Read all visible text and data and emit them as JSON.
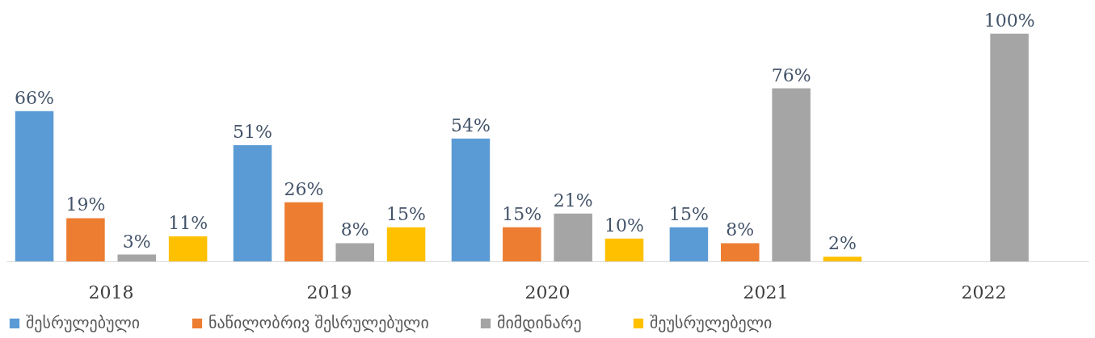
{
  "chart_data": {
    "type": "bar",
    "categories": [
      "2018",
      "2019",
      "2020",
      "2021",
      "2022"
    ],
    "series": [
      {
        "name": "შესრულებული",
        "color": "#5b9bd5",
        "values": [
          66,
          51,
          54,
          15,
          null
        ],
        "value_labels": [
          "66%",
          "51%",
          "54%",
          "15%",
          null
        ]
      },
      {
        "name": "ნაწილობრივ შესრულებული",
        "color": "#ed7d31",
        "values": [
          19,
          26,
          15,
          8,
          null
        ],
        "value_labels": [
          "19%",
          "26%",
          "15%",
          "8%",
          null
        ]
      },
      {
        "name": "მიმდინარე",
        "color": "#a5a5a5",
        "values": [
          3,
          8,
          21,
          76,
          100
        ],
        "value_labels": [
          "3%",
          "8%",
          "21%",
          "76%",
          "100%"
        ]
      },
      {
        "name": "შეუსრულებელი",
        "color": "#ffc000",
        "values": [
          11,
          15,
          10,
          2,
          null
        ],
        "value_labels": [
          "11%",
          "15%",
          "10%",
          "2%",
          null
        ]
      }
    ],
    "legend": "bottom"
  }
}
